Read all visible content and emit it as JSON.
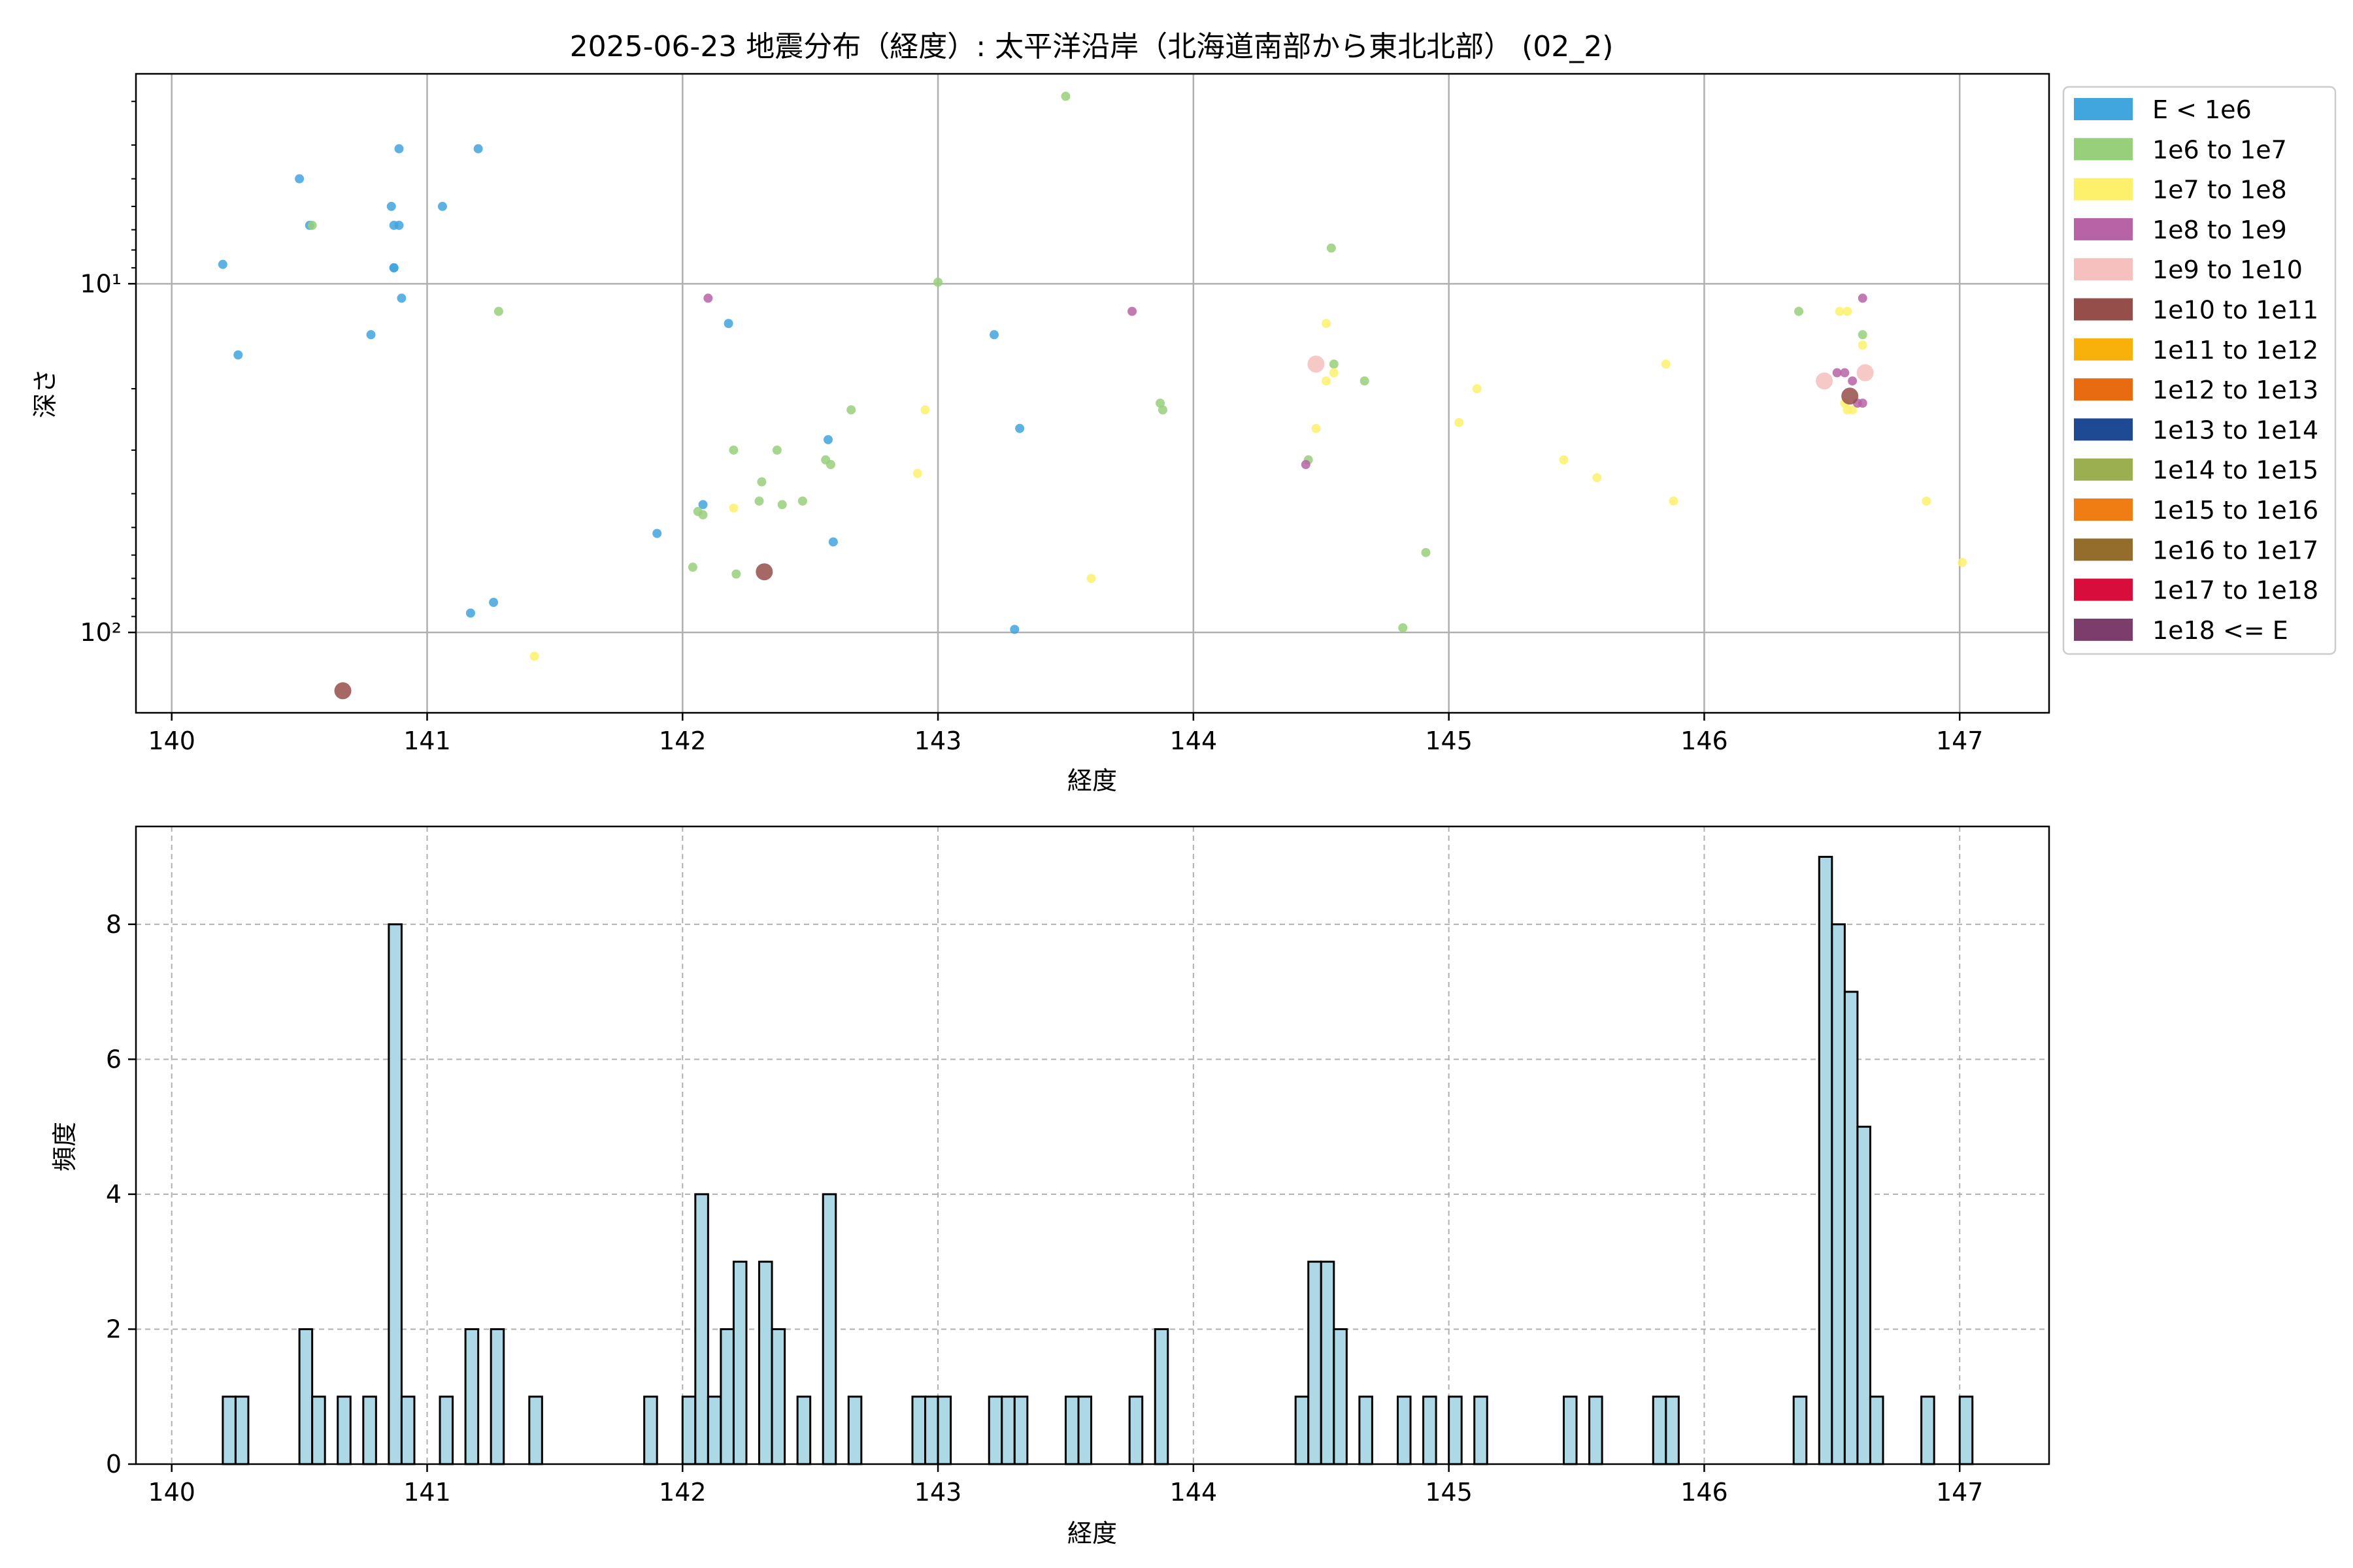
{
  "chart_data": [
    {
      "type": "scatter",
      "title": "2025-06-23 地震分布（経度）: 太平洋沿岸（北海道南部から東北北部） (02_2)",
      "xlabel": "経度",
      "ylabel": "深さ",
      "xlim": [
        139.86,
        147.35
      ],
      "ylim": [
        170,
        2.5
      ],
      "yscale": "log",
      "y_inverted": true,
      "grid": true,
      "legend_position": "outside-right-top",
      "x_ticks": [
        140,
        141,
        142,
        143,
        144,
        145,
        146,
        147
      ],
      "x_tick_labels": [
        "140",
        "141",
        "142",
        "143",
        "144",
        "145",
        "146",
        "147"
      ],
      "y_ticks": [
        10,
        100
      ],
      "y_tick_labels": [
        "10¹",
        "10²"
      ],
      "legend": [
        {
          "label": "E < 1e6",
          "color": "#41a5de"
        },
        {
          "label": "1e6 to 1e7",
          "color": "#98cf7b"
        },
        {
          "label": "1e7 to 1e8",
          "color": "#fdf16c"
        },
        {
          "label": "1e8 to 1e9",
          "color": "#b763a6"
        },
        {
          "label": "1e9 to 1e10",
          "color": "#f5c0bd"
        },
        {
          "label": "1e10 to 1e11",
          "color": "#954e4a"
        },
        {
          "label": "1e11 to 1e12",
          "color": "#f8b10a"
        },
        {
          "label": "1e12 to 1e13",
          "color": "#e86a11"
        },
        {
          "label": "1e13 to 1e14",
          "color": "#1d4a93"
        },
        {
          "label": "1e14 to 1e15",
          "color": "#9bae50"
        },
        {
          "label": "1e15 to 1e16",
          "color": "#ef7d13"
        },
        {
          "label": "1e16 to 1e17",
          "color": "#946c2c"
        },
        {
          "label": "1e17 to 1e18",
          "color": "#d80d3b"
        },
        {
          "label": "1e18 <= E",
          "color": "#7c3d6d"
        }
      ],
      "series": [
        {
          "class": 0,
          "points": [
            [
              140.2,
              8.8
            ],
            [
              140.26,
              16.0
            ],
            [
              140.5,
              5.0
            ],
            [
              140.78,
              14.0
            ],
            [
              140.86,
              6.0
            ],
            [
              140.87,
              9.0
            ],
            [
              140.87,
              9.0
            ],
            [
              140.87,
              6.8
            ],
            [
              140.89,
              6.8
            ],
            [
              140.89,
              4.1
            ],
            [
              140.9,
              11.0
            ],
            [
              141.06,
              6.0
            ],
            [
              141.2,
              4.1
            ],
            [
              140.54,
              6.8
            ],
            [
              141.17,
              88.0
            ],
            [
              141.26,
              82.0
            ],
            [
              141.9,
              52.0
            ],
            [
              142.08,
              43.0
            ],
            [
              142.18,
              13.0
            ],
            [
              142.57,
              28.0
            ],
            [
              142.59,
              55.0
            ],
            [
              143.22,
              14.0
            ],
            [
              143.3,
              98.0
            ],
            [
              143.32,
              26.0
            ]
          ]
        },
        {
          "class": 1,
          "points": [
            [
              140.55,
              6.8
            ],
            [
              141.28,
              12.0
            ],
            [
              142.04,
              65.0
            ],
            [
              142.06,
              45.0
            ],
            [
              142.08,
              46.0
            ],
            [
              142.2,
              30.0
            ],
            [
              142.21,
              68.0
            ],
            [
              142.3,
              42.0
            ],
            [
              142.31,
              37.0
            ],
            [
              142.37,
              30.0
            ],
            [
              142.39,
              43.0
            ],
            [
              142.47,
              42.0
            ],
            [
              142.56,
              32.0
            ],
            [
              142.58,
              33.0
            ],
            [
              142.66,
              23.0
            ],
            [
              143.0,
              9.9
            ],
            [
              143.5,
              2.9
            ],
            [
              143.87,
              22.0
            ],
            [
              143.88,
              23.0
            ],
            [
              144.45,
              32.0
            ],
            [
              144.54,
              7.9
            ],
            [
              144.55,
              17.0
            ],
            [
              144.67,
              19.0
            ],
            [
              144.82,
              97.0
            ],
            [
              144.91,
              59.0
            ],
            [
              146.37,
              12.0
            ],
            [
              146.62,
              14.0
            ]
          ]
        },
        {
          "class": 2,
          "points": [
            [
              141.42,
              117.0
            ],
            [
              142.2,
              44.0
            ],
            [
              142.92,
              35.0
            ],
            [
              142.95,
              23.0
            ],
            [
              143.6,
              70.0
            ],
            [
              144.48,
              26.0
            ],
            [
              144.52,
              13.0
            ],
            [
              144.52,
              19.0
            ],
            [
              144.55,
              18.0
            ],
            [
              145.04,
              25.0
            ],
            [
              145.11,
              20.0
            ],
            [
              145.45,
              32.0
            ],
            [
              145.58,
              36.0
            ],
            [
              145.85,
              17.0
            ],
            [
              145.88,
              42.0
            ],
            [
              146.53,
              12.0
            ],
            [
              146.56,
              12.0
            ],
            [
              146.55,
              22.0
            ],
            [
              146.56,
              23.0
            ],
            [
              146.58,
              23.0
            ],
            [
              146.62,
              15.0
            ],
            [
              146.87,
              42.0
            ],
            [
              147.01,
              63.0
            ]
          ]
        },
        {
          "class": 3,
          "points": [
            [
              142.1,
              11.0
            ],
            [
              143.76,
              12.0
            ],
            [
              144.44,
              33.0
            ],
            [
              146.52,
              18.0
            ],
            [
              146.55,
              18.0
            ],
            [
              146.58,
              19.0
            ],
            [
              146.6,
              22.0
            ],
            [
              146.62,
              11.0
            ],
            [
              146.62,
              22.0
            ]
          ]
        },
        {
          "class": 4,
          "points": [
            [
              144.48,
              17.0
            ],
            [
              146.47,
              19.0
            ],
            [
              146.63,
              18.0
            ]
          ]
        },
        {
          "class": 5,
          "points": [
            [
              140.67,
              147.0
            ],
            [
              142.32,
              67.0
            ],
            [
              146.57,
              21.0
            ]
          ]
        }
      ]
    },
    {
      "type": "bar",
      "subtype": "histogram",
      "xlabel": "経度",
      "ylabel": "頻度",
      "xlim": [
        139.86,
        147.35
      ],
      "ylim": [
        0,
        9.45
      ],
      "bin_width": 0.05,
      "grid": true,
      "x_ticks": [
        140,
        141,
        142,
        143,
        144,
        145,
        146,
        147
      ],
      "x_tick_labels": [
        "140",
        "141",
        "142",
        "143",
        "144",
        "145",
        "146",
        "147"
      ],
      "y_ticks": [
        0,
        2,
        4,
        6,
        8
      ],
      "y_tick_labels": [
        "0",
        "2",
        "4",
        "6",
        "8"
      ],
      "bins": [
        [
          140.2,
          1
        ],
        [
          140.25,
          1
        ],
        [
          140.5,
          2
        ],
        [
          140.55,
          1
        ],
        [
          140.65,
          1
        ],
        [
          140.75,
          1
        ],
        [
          140.85,
          8
        ],
        [
          140.9,
          1
        ],
        [
          141.05,
          1
        ],
        [
          141.15,
          2
        ],
        [
          141.25,
          2
        ],
        [
          141.4,
          1
        ],
        [
          141.85,
          1
        ],
        [
          142.0,
          1
        ],
        [
          142.05,
          4
        ],
        [
          142.1,
          1
        ],
        [
          142.15,
          2
        ],
        [
          142.2,
          3
        ],
        [
          142.3,
          3
        ],
        [
          142.35,
          2
        ],
        [
          142.45,
          1
        ],
        [
          142.55,
          4
        ],
        [
          142.65,
          1
        ],
        [
          142.9,
          1
        ],
        [
          142.95,
          1
        ],
        [
          143.0,
          1
        ],
        [
          143.2,
          1
        ],
        [
          143.25,
          1
        ],
        [
          143.3,
          1
        ],
        [
          143.5,
          1
        ],
        [
          143.55,
          1
        ],
        [
          143.75,
          1
        ],
        [
          143.85,
          2
        ],
        [
          144.4,
          1
        ],
        [
          144.45,
          3
        ],
        [
          144.5,
          3
        ],
        [
          144.55,
          2
        ],
        [
          144.65,
          1
        ],
        [
          144.8,
          1
        ],
        [
          144.9,
          1
        ],
        [
          145.0,
          1
        ],
        [
          145.1,
          1
        ],
        [
          145.45,
          1
        ],
        [
          145.55,
          1
        ],
        [
          145.8,
          1
        ],
        [
          145.85,
          1
        ],
        [
          146.35,
          1
        ],
        [
          146.45,
          9
        ],
        [
          146.5,
          8
        ],
        [
          146.55,
          7
        ],
        [
          146.6,
          5
        ],
        [
          146.65,
          1
        ],
        [
          146.85,
          1
        ],
        [
          147.0,
          1
        ]
      ]
    }
  ]
}
